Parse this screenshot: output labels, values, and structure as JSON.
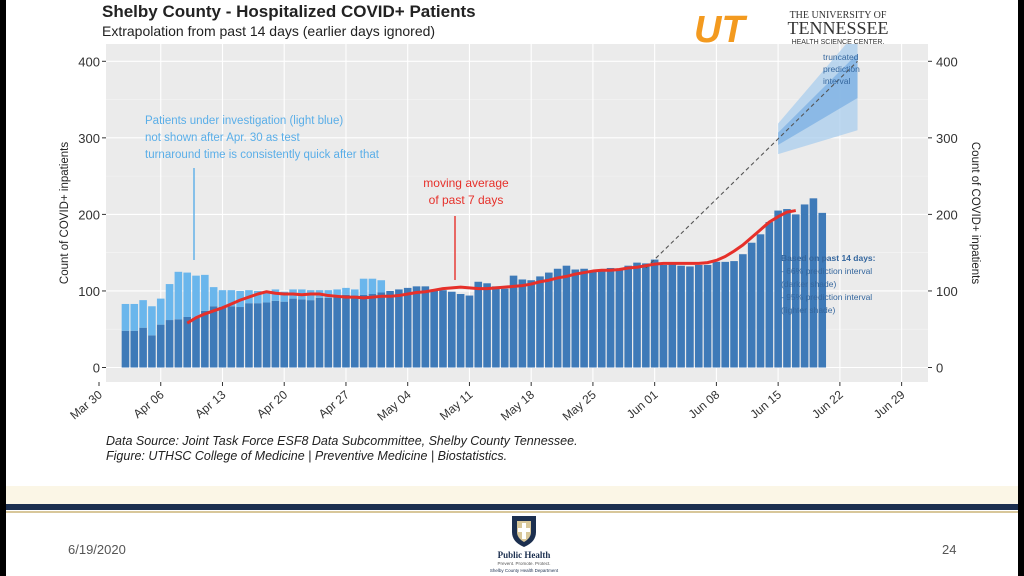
{
  "title": "Shelby County - Hospitalized COVID+ Patients",
  "subtitle": "Extrapolation from past 14 days (earlier days ignored)",
  "logo": {
    "monogram": "UT",
    "line1": "THE UNIVERSITY OF",
    "line2": "TENNESSEE",
    "line3": "HEALTH SCIENCE CENTER.",
    "color": "#f39a1f"
  },
  "annotations": {
    "pui_note": [
      "Patients under investigation (light blue)",
      "not shown after Apr. 30 as test",
      "turnaround time is consistently quick after that"
    ],
    "moving_avg_note": [
      "moving average",
      "of past 7 days"
    ],
    "truncated_note": [
      "truncated",
      "prediction",
      "interval"
    ],
    "based_on": [
      "Based on past 14 days:",
      "- 66% prediction interval",
      "(darker shade)",
      "- 95% prediction interval",
      "(lighter shade)"
    ]
  },
  "source": {
    "line1": "Data Source: Joint Task Force ESF8 Data Subcommittee, Shelby County Tennessee.",
    "line2": "Figure: UTHSC College of Medicine | Preventive Medicine | Biostatistics."
  },
  "footer": {
    "date": "6/19/2020",
    "page": "24",
    "org_name": "Public Health",
    "org_tagline": "Prevent. Promote. Protect.",
    "org_dept": "Shelby County Health Department"
  },
  "chart_data": {
    "type": "bar",
    "ylabel_left": "Count of COVID+ inpatients",
    "ylabel_right": "Count of COVID+ inpatients",
    "ylim": [
      0,
      410
    ],
    "y_ticks": [
      0,
      100,
      200,
      300,
      400
    ],
    "x_ticks": [
      "Mar 30",
      "Apr 06",
      "Apr 13",
      "Apr 20",
      "Apr 27",
      "May 04",
      "May 11",
      "May 18",
      "May 25",
      "Jun 01",
      "Jun 08",
      "Jun 15",
      "Jun 22",
      "Jun 29"
    ],
    "start_date": "Apr 02",
    "series": [
      {
        "name": "COVID+ inpatients",
        "color": "#3e7ab8",
        "values": [
          48,
          48,
          52,
          42,
          56,
          62,
          63,
          66,
          65,
          74,
          80,
          79,
          80,
          79,
          84,
          84,
          85,
          87,
          86,
          90,
          89,
          88,
          91,
          91,
          92,
          95,
          94,
          95,
          96,
          98,
          100,
          102,
          104,
          106,
          106,
          102,
          101,
          99,
          96,
          94,
          112,
          110,
          106,
          103,
          120,
          115,
          114,
          119,
          124,
          129,
          133,
          128,
          129,
          125,
          126,
          130,
          129,
          133,
          137,
          136,
          141,
          134,
          136,
          133,
          132,
          134,
          134,
          138,
          138,
          139,
          148,
          163,
          174,
          190,
          205,
          207,
          200,
          213,
          221,
          202
        ]
      },
      {
        "name": "Patients under investigation",
        "color": "#6ab6ec",
        "values": [
          35,
          35,
          36,
          38,
          34,
          47,
          62,
          58,
          55,
          47,
          25,
          22,
          21,
          21,
          17,
          16,
          15,
          15,
          13,
          12,
          13,
          13,
          10,
          10,
          10,
          9,
          8,
          21,
          20,
          16
        ]
      },
      {
        "name": "moving average of past 7 days",
        "color": "#e6302a",
        "start_index": 7,
        "values": [
          58,
          65,
          70,
          74,
          78,
          83,
          88,
          92,
          96,
          99,
          97,
          96,
          96,
          95,
          96,
          96,
          94,
          93,
          92,
          92,
          91,
          92,
          93,
          93,
          94,
          96,
          98,
          99,
          101,
          103,
          104,
          105,
          104,
          103,
          103,
          104,
          105,
          106,
          107,
          109,
          112,
          114,
          117,
          119,
          122,
          124,
          126,
          127,
          127,
          128,
          130,
          131,
          133,
          135,
          136,
          136,
          136,
          136,
          136,
          137,
          140,
          145,
          152,
          160,
          170,
          180,
          190,
          197,
          203,
          205
        ]
      },
      {
        "name": "extrapolation",
        "color": "#555555",
        "x_days": [
          62,
          86
        ],
        "values": [
          130,
          400
        ]
      }
    ]
  }
}
